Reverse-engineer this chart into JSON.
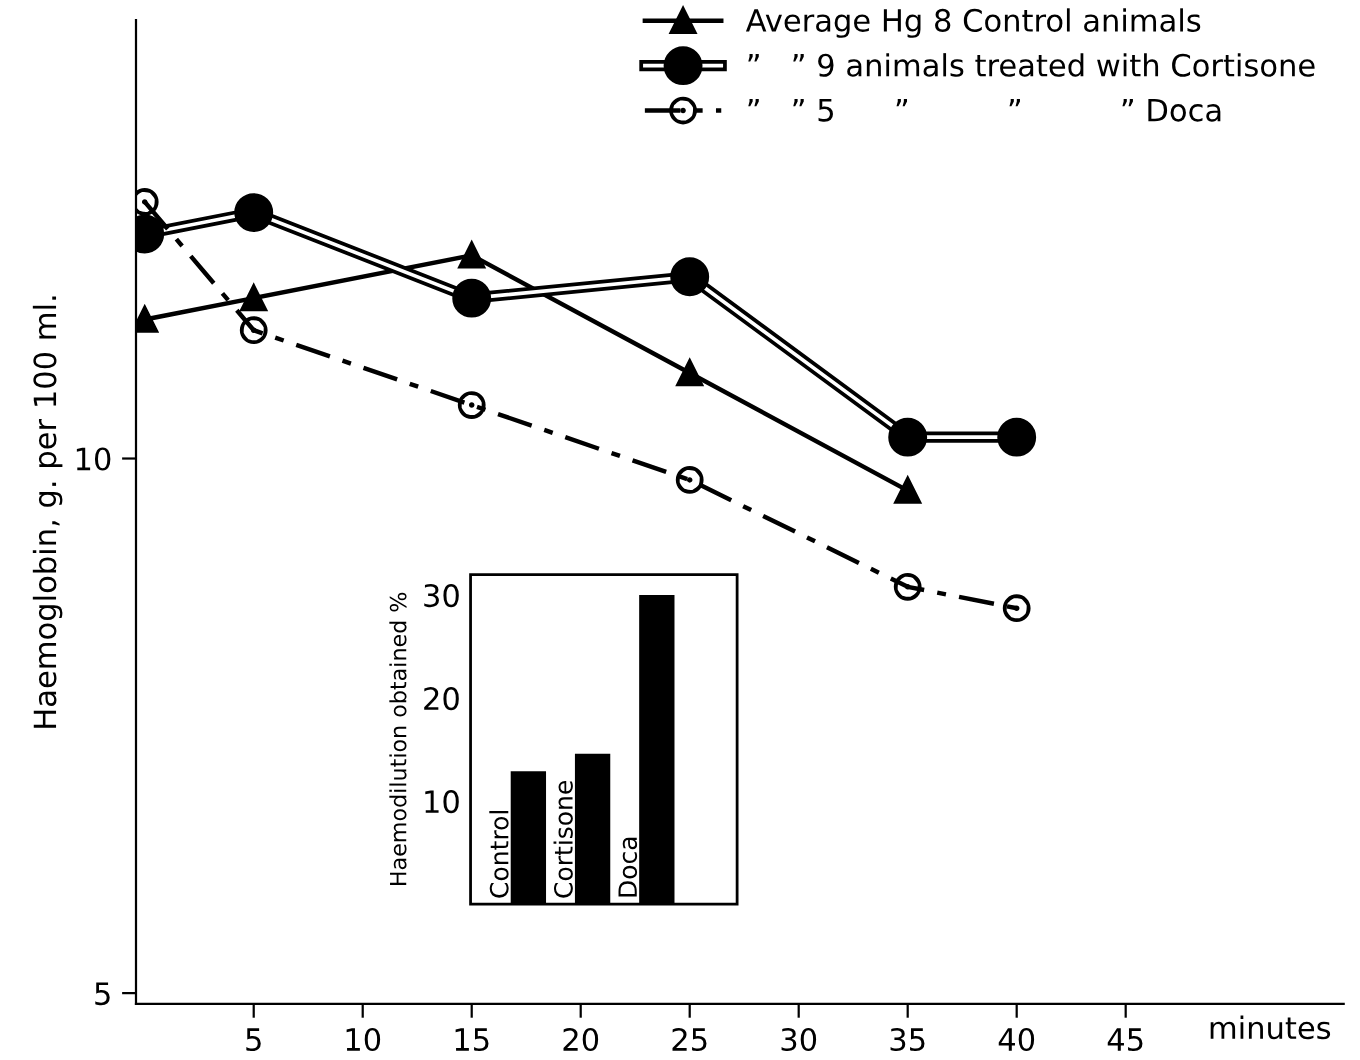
{
  "chart_data": [
    {
      "type": "line",
      "ylabel": "Haemoglobin, g. per 100 ml.",
      "xlabel": "minutes",
      "xlim": [
        -0.4,
        55
      ],
      "xticks": [
        5,
        10,
        15,
        20,
        25,
        30,
        35,
        40,
        45
      ],
      "ylim": [
        4.9,
        14.1
      ],
      "yticks": [
        5,
        10
      ],
      "grid": false,
      "legend": "top right",
      "series": [
        {
          "name": "Average Hg 8 Control animals",
          "color": "#000000",
          "marker": "triangle",
          "line_style": "solid",
          "x": [
            0,
            5,
            15,
            25,
            35
          ],
          "values": [
            11.3,
            11.5,
            11.9,
            10.8,
            9.7
          ]
        },
        {
          "name": "”   ” 9 animals treated with Cortisone",
          "color": "#000000",
          "marker": "circle",
          "line_style": "solid",
          "x": [
            0,
            5,
            15,
            25,
            35,
            40
          ],
          "values": [
            12.1,
            12.3,
            11.5,
            11.7,
            10.2,
            10.2
          ]
        },
        {
          "name": "”   ” 5      ”          ”          ” Doca",
          "color": "#000000",
          "marker": "circle",
          "line_style": "dashed",
          "x": [
            0,
            5,
            15,
            25,
            35,
            40
          ],
          "values": [
            12.4,
            11.2,
            10.5,
            9.8,
            8.8,
            8.6
          ]
        }
      ]
    },
    {
      "type": "bar",
      "ylabel": "Haemodilution obtained %",
      "categories": [
        "Control",
        "Cortisone",
        "Doca"
      ],
      "values": [
        12.9,
        14.6,
        30
      ],
      "color": "#000000",
      "ylim": [
        0,
        32
      ],
      "yticks": [
        10,
        20,
        30
      ],
      "grid": false
    }
  ]
}
